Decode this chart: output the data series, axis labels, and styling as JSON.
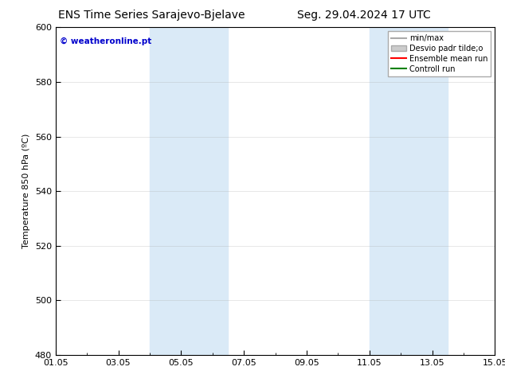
{
  "title_left": "ENS Time Series Sarajevo-Bjelave",
  "title_right": "Seg. 29.04.2024 17 UTC",
  "ylabel": "Temperature 850 hPa (ºC)",
  "watermark": "© weatheronline.pt",
  "watermark_color": "#0000cc",
  "ylim": [
    480,
    600
  ],
  "yticks": [
    480,
    500,
    520,
    540,
    560,
    580,
    600
  ],
  "x_start": 0.0,
  "x_end": 14.0,
  "xtick_labels": [
    "01.05",
    "03.05",
    "05.05",
    "07.05",
    "09.05",
    "11.05",
    "13.05",
    "15.05"
  ],
  "xtick_positions": [
    0.0,
    2.0,
    4.0,
    6.0,
    8.0,
    10.0,
    12.0,
    14.0
  ],
  "bg_color": "#ffffff",
  "plot_bg_color": "#ffffff",
  "shaded_bands": [
    {
      "x_start": 3.0,
      "x_end": 5.5,
      "color": "#daeaf7"
    },
    {
      "x_start": 10.0,
      "x_end": 12.5,
      "color": "#daeaf7"
    }
  ],
  "legend_entries": [
    {
      "label": "min/max",
      "color": "#aaaaaa",
      "lw": 1.5,
      "linestyle": "-",
      "is_patch": false
    },
    {
      "label": "Desvio padr tilde;o",
      "color": "#cccccc",
      "lw": 8,
      "linestyle": "-",
      "is_patch": true
    },
    {
      "label": "Ensemble mean run",
      "color": "#ff0000",
      "lw": 1.5,
      "linestyle": "-",
      "is_patch": false
    },
    {
      "label": "Controll run",
      "color": "#008000",
      "lw": 1.5,
      "linestyle": "-",
      "is_patch": false
    }
  ],
  "title_fontsize": 10,
  "tick_fontsize": 8,
  "ylabel_fontsize": 8,
  "legend_fontsize": 7,
  "grid_color": "#aaaaaa",
  "grid_alpha": 0.4,
  "frame_color": "#000000"
}
